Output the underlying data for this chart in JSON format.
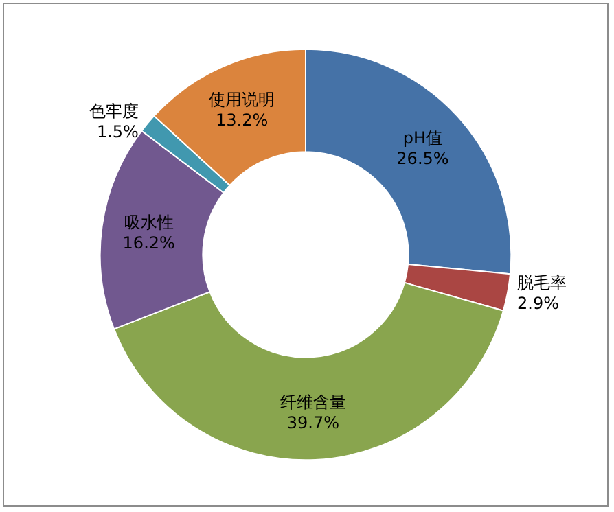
{
  "chart_data": {
    "type": "donut",
    "categories": [
      "pH值",
      "脱毛率",
      "纤维含量",
      "吸水性",
      "色牢度",
      "使用说明"
    ],
    "values": [
      26.5,
      2.9,
      39.7,
      16.2,
      1.5,
      13.2
    ],
    "value_labels": [
      "26.5%",
      "2.9%",
      "39.7%",
      "16.2%",
      "1.5%",
      "13.2%"
    ],
    "colors": [
      "#4572a7",
      "#aa4643",
      "#89a54e",
      "#71588f",
      "#4198af",
      "#db843d"
    ],
    "legend": false
  }
}
